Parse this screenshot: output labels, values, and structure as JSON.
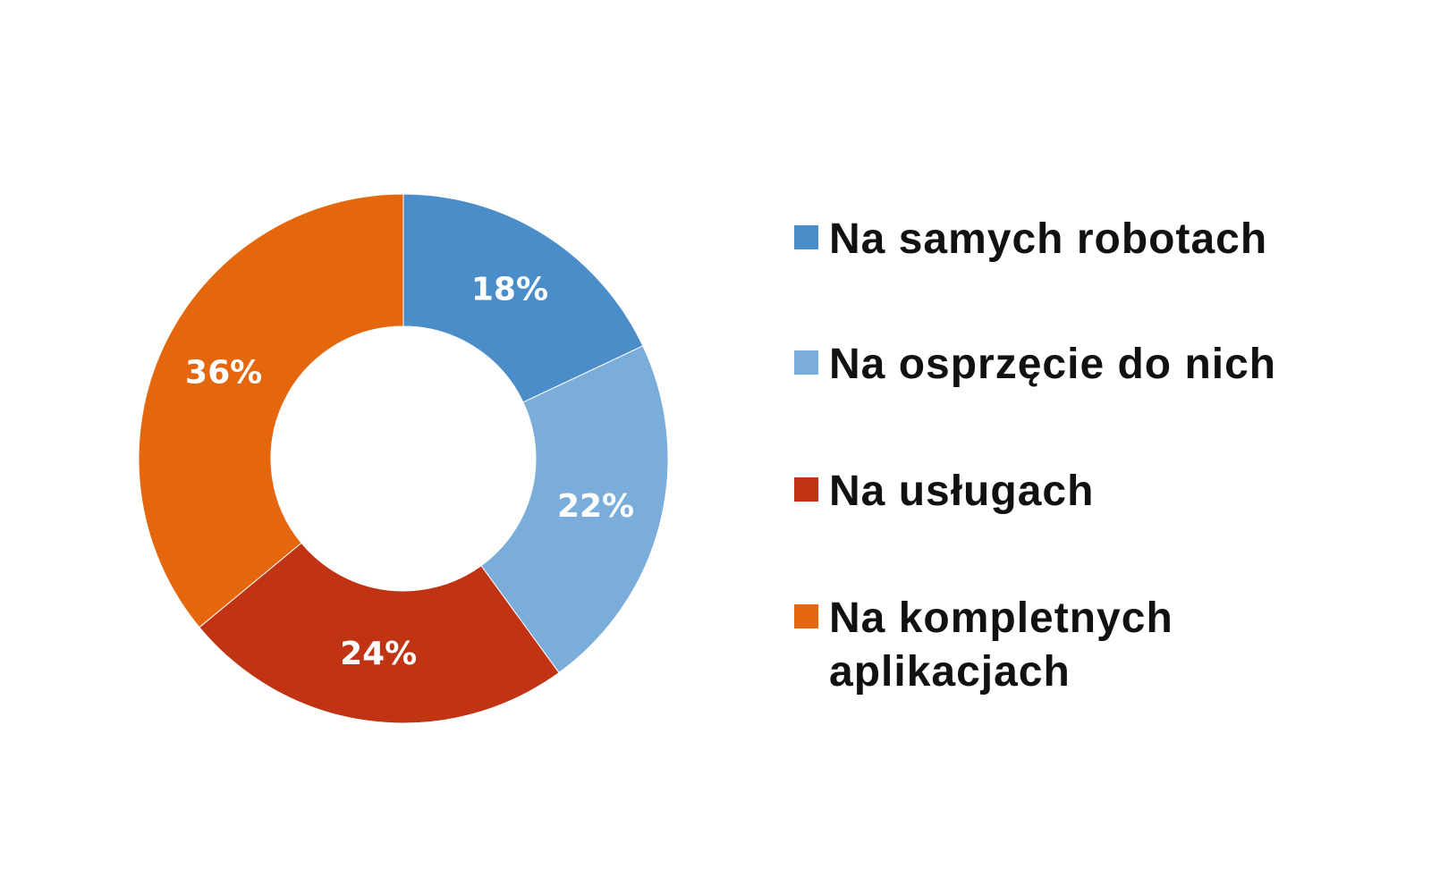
{
  "chart_data": {
    "type": "donut",
    "categories": [
      "Na samych robotach",
      "Na osprzęcie do nich",
      "Na usługach",
      "Na kompletnych aplikacjach"
    ],
    "values": [
      18,
      22,
      24,
      36
    ],
    "value_labels": [
      "18%",
      "22%",
      "24%",
      "36%"
    ],
    "colors": [
      "#4a8dc9",
      "#7badda",
      "#c03414",
      "#e4670e"
    ]
  }
}
